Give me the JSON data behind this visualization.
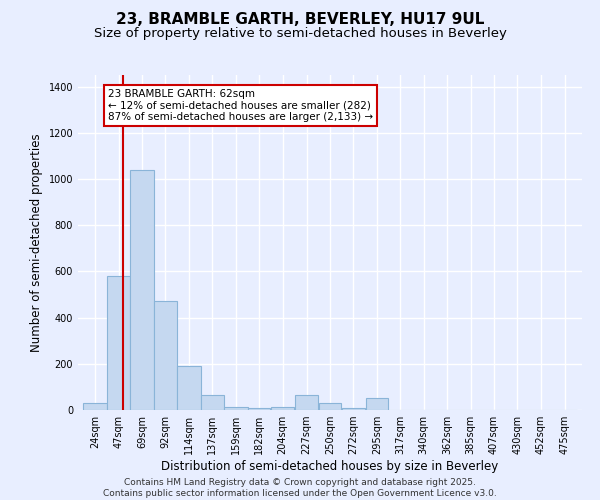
{
  "title_line1": "23, BRAMBLE GARTH, BEVERLEY, HU17 9UL",
  "title_line2": "Size of property relative to semi-detached houses in Beverley",
  "xlabel": "Distribution of semi-detached houses by size in Beverley",
  "ylabel": "Number of semi-detached properties",
  "categories": [
    "24sqm",
    "47sqm",
    "69sqm",
    "92sqm",
    "114sqm",
    "137sqm",
    "159sqm",
    "182sqm",
    "204sqm",
    "227sqm",
    "250sqm",
    "272sqm",
    "295sqm",
    "317sqm",
    "340sqm",
    "362sqm",
    "385sqm",
    "407sqm",
    "430sqm",
    "452sqm",
    "475sqm"
  ],
  "bar_edges": [
    24,
    47,
    69,
    92,
    114,
    137,
    159,
    182,
    204,
    227,
    250,
    272,
    295,
    317,
    340,
    362,
    385,
    407,
    430,
    452,
    475,
    498
  ],
  "bar_values": [
    30,
    582,
    1040,
    470,
    190,
    65,
    13,
    10,
    15,
    65,
    30,
    10,
    50,
    0,
    0,
    0,
    0,
    0,
    0,
    0,
    0
  ],
  "bar_color": "#c5d8f0",
  "bar_edge_color": "#8ab4d8",
  "bar_linewidth": 0.8,
  "property_size": 62,
  "red_line_color": "#cc0000",
  "annotation_text": "23 BRAMBLE GARTH: 62sqm\n← 12% of semi-detached houses are smaller (282)\n87% of semi-detached houses are larger (2,133) →",
  "annotation_box_color": "#ffffff",
  "annotation_box_edgecolor": "#cc0000",
  "bg_color": "#e8eeff",
  "plot_bg_color": "#e8eeff",
  "ylim": [
    0,
    1450
  ],
  "yticks": [
    0,
    200,
    400,
    600,
    800,
    1000,
    1200,
    1400
  ],
  "grid_color": "#ffffff",
  "footer_line1": "Contains HM Land Registry data © Crown copyright and database right 2025.",
  "footer_line2": "Contains public sector information licensed under the Open Government Licence v3.0.",
  "title_fontsize": 11,
  "subtitle_fontsize": 9.5,
  "axis_label_fontsize": 8.5,
  "tick_fontsize": 7,
  "annotation_fontsize": 7.5,
  "footer_fontsize": 6.5
}
